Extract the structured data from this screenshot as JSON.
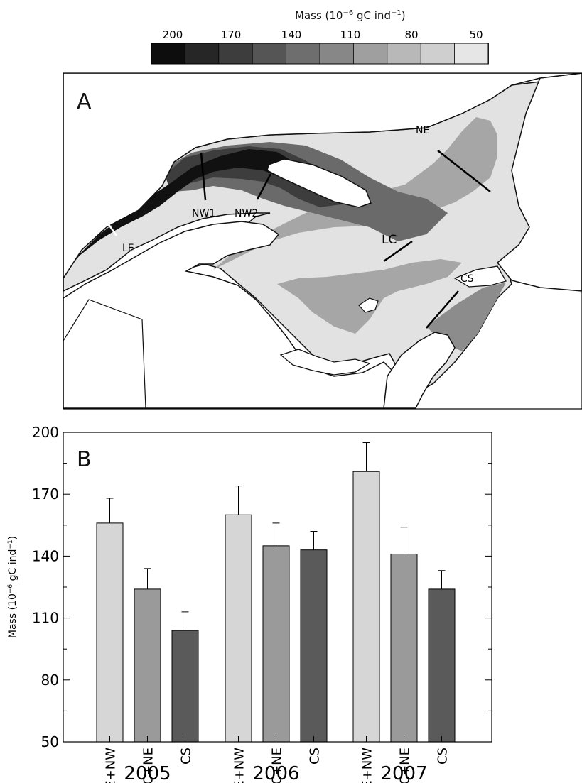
{
  "colorbar": {
    "title": "Mass (10",
    "title_exp": "−6",
    "title_rest": " gC ind",
    "title_exp2": "−1",
    "title_close": ")",
    "tick_labels": [
      "200",
      "170",
      "140",
      "110",
      "80",
      "50"
    ],
    "colors": [
      "#0d0d0d",
      "#262626",
      "#3d3d3d",
      "#555555",
      "#6e6e6e",
      "#878787",
      "#9f9f9f",
      "#b8b8b8",
      "#cfcfcf",
      "#e6e6e6"
    ]
  },
  "map": {
    "panel_label": "A",
    "section_labels": [
      "NE",
      "NW1",
      "NW2",
      "LE",
      "LC",
      "CS"
    ]
  },
  "chart_data": {
    "type": "bar",
    "panel_label": "B",
    "ylabel": "Mass (10",
    "ylabel_exp": "−6",
    "ylabel_rest": " gC ind",
    "ylabel_exp2": "−1",
    "ylabel_close": ")",
    "ylim": [
      50,
      200
    ],
    "yticks": [
      50,
      80,
      110,
      140,
      170,
      200
    ],
    "groups": [
      "2005",
      "2006",
      "2007"
    ],
    "categories": [
      "LE+NW",
      "LC+NE",
      "CS"
    ],
    "category_colors": [
      "#d6d6d6",
      "#9a9a9a",
      "#5a5a5a"
    ],
    "values": [
      [
        156,
        124,
        104
      ],
      [
        160,
        145,
        143
      ],
      [
        181,
        141,
        124
      ]
    ],
    "errors": [
      [
        12,
        10,
        9
      ],
      [
        14,
        11,
        9
      ],
      [
        14,
        13,
        9
      ]
    ]
  }
}
